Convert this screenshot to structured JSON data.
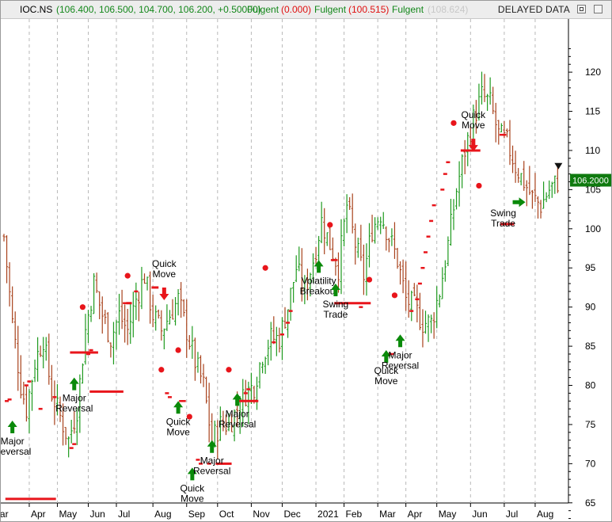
{
  "header": {
    "symbol": "IOC.NS",
    "ohlc": "(106.400, 106.500, 104.700, 106.200, +0.50000)",
    "ind1_name": "Fulgent",
    "ind1_value": "(0.000)",
    "ind2_name": "Fulgent",
    "ind2_value": "(100.515)",
    "ind3_name": "Fulgent",
    "ind3_value": "(108.624)",
    "status": "DELAYED DATA"
  },
  "colors": {
    "up": "#1f9a1f",
    "down": "#a8421c",
    "signal": "#e8151b",
    "arrow": "#0a8a0a",
    "price_box": "#0f7a0f",
    "header_green": "#13871a",
    "header_red": "#e01010",
    "header_gray": "#c8c8c8",
    "grid": "#b9b9b9"
  },
  "chart_data": {
    "type": "candlestick",
    "title": "IOC.NS",
    "ylim": [
      60,
      124
    ],
    "yticks": [
      65,
      70,
      75,
      80,
      85,
      90,
      95,
      100,
      105,
      110,
      115,
      120
    ],
    "x_tick_labels": [
      "ar",
      "Apr",
      "May",
      "Jun",
      "Jul",
      "Aug",
      "Sep",
      "Oct",
      "Nov",
      "Dec",
      "2021",
      "Feb",
      "Mar",
      "Apr",
      "May",
      "Jun",
      "Jul",
      "Aug"
    ],
    "last_price": "106.2000",
    "ohlc": [
      {
        "index": 0,
        "value": 99
      },
      {
        "index": 3,
        "value": 88
      },
      {
        "index": 6,
        "value": 80
      },
      {
        "index": 8,
        "value": 77
      },
      {
        "index": 11,
        "value": 83
      },
      {
        "index": 14,
        "value": 86
      },
      {
        "index": 17,
        "value": 79
      },
      {
        "index": 20,
        "value": 76
      },
      {
        "index": 23,
        "value": 73
      },
      {
        "index": 26,
        "value": 77
      },
      {
        "index": 29,
        "value": 87
      },
      {
        "index": 32,
        "value": 93
      },
      {
        "index": 35,
        "value": 89
      },
      {
        "index": 38,
        "value": 86
      },
      {
        "index": 41,
        "value": 89
      },
      {
        "index": 44,
        "value": 87
      },
      {
        "index": 47,
        "value": 91
      },
      {
        "index": 50,
        "value": 94
      },
      {
        "index": 53,
        "value": 89
      },
      {
        "index": 56,
        "value": 87
      },
      {
        "index": 59,
        "value": 89
      },
      {
        "index": 62,
        "value": 91
      },
      {
        "index": 65,
        "value": 87
      },
      {
        "index": 68,
        "value": 83
      },
      {
        "index": 71,
        "value": 80
      },
      {
        "index": 74,
        "value": 73
      },
      {
        "index": 77,
        "value": 75
      },
      {
        "index": 80,
        "value": 75
      },
      {
        "index": 83,
        "value": 77
      },
      {
        "index": 86,
        "value": 79
      },
      {
        "index": 89,
        "value": 80
      },
      {
        "index": 92,
        "value": 84
      },
      {
        "index": 95,
        "value": 86
      },
      {
        "index": 98,
        "value": 86
      },
      {
        "index": 101,
        "value": 90
      },
      {
        "index": 104,
        "value": 95
      },
      {
        "index": 107,
        "value": 92
      },
      {
        "index": 110,
        "value": 96
      },
      {
        "index": 113,
        "value": 101
      },
      {
        "index": 116,
        "value": 98
      },
      {
        "index": 119,
        "value": 95
      },
      {
        "index": 122,
        "value": 103
      },
      {
        "index": 125,
        "value": 98
      },
      {
        "index": 128,
        "value": 94
      },
      {
        "index": 131,
        "value": 100
      },
      {
        "index": 134,
        "value": 102
      },
      {
        "index": 137,
        "value": 99
      },
      {
        "index": 140,
        "value": 96
      },
      {
        "index": 143,
        "value": 91
      },
      {
        "index": 146,
        "value": 90
      },
      {
        "index": 149,
        "value": 88
      },
      {
        "index": 152,
        "value": 88
      },
      {
        "index": 155,
        "value": 92
      },
      {
        "index": 158,
        "value": 98
      },
      {
        "index": 161,
        "value": 105
      },
      {
        "index": 164,
        "value": 110
      },
      {
        "index": 167,
        "value": 114
      },
      {
        "index": 170,
        "value": 117
      },
      {
        "index": 173,
        "value": 116
      },
      {
        "index": 176,
        "value": 112
      },
      {
        "index": 179,
        "value": 111
      },
      {
        "index": 182,
        "value": 108
      },
      {
        "index": 185,
        "value": 106
      },
      {
        "index": 188,
        "value": 104
      },
      {
        "index": 191,
        "value": 103
      },
      {
        "index": 194,
        "value": 105
      },
      {
        "index": 197,
        "value": 106
      }
    ],
    "signal_dots": [
      {
        "index": 28,
        "value": 90
      },
      {
        "index": 44,
        "value": 94
      },
      {
        "index": 56,
        "value": 82
      },
      {
        "index": 62,
        "value": 84.5
      },
      {
        "index": 66,
        "value": 76
      },
      {
        "index": 80,
        "value": 82
      },
      {
        "index": 93,
        "value": 95
      },
      {
        "index": 116,
        "value": 100.5
      },
      {
        "index": 130,
        "value": 93.5
      },
      {
        "index": 139,
        "value": 91.5
      },
      {
        "index": 160,
        "value": 113.5
      },
      {
        "index": 169,
        "value": 105.5
      }
    ],
    "stop_dashes": [
      {
        "index": 1,
        "value": 78
      },
      {
        "index": 2,
        "value": 78.2
      },
      {
        "index": 8,
        "value": 80
      },
      {
        "index": 9,
        "value": 80.5
      },
      {
        "index": 13,
        "value": 77
      },
      {
        "index": 18,
        "value": 78.5
      },
      {
        "index": 24,
        "value": 72
      },
      {
        "index": 25,
        "value": 72.5
      },
      {
        "index": 30,
        "value": 84
      },
      {
        "index": 31,
        "value": 84.5
      },
      {
        "index": 43,
        "value": 90.5
      },
      {
        "index": 47,
        "value": 92
      },
      {
        "index": 58,
        "value": 79
      },
      {
        "index": 59,
        "value": 78.5
      },
      {
        "index": 63,
        "value": 78
      },
      {
        "index": 64,
        "value": 78
      },
      {
        "index": 69,
        "value": 70.5
      },
      {
        "index": 70,
        "value": 70
      },
      {
        "index": 73,
        "value": 70
      },
      {
        "index": 76,
        "value": 70
      },
      {
        "index": 86,
        "value": 79
      },
      {
        "index": 87,
        "value": 79.5
      },
      {
        "index": 96,
        "value": 85.5
      },
      {
        "index": 99,
        "value": 86.5
      },
      {
        "index": 101,
        "value": 88
      },
      {
        "index": 102,
        "value": 89.5
      },
      {
        "index": 117,
        "value": 96
      },
      {
        "index": 118,
        "value": 96
      },
      {
        "index": 126,
        "value": 90.5
      },
      {
        "index": 127,
        "value": 90
      },
      {
        "index": 137,
        "value": 84
      },
      {
        "index": 138,
        "value": 84
      },
      {
        "index": 145,
        "value": 89.5
      },
      {
        "index": 147,
        "value": 91
      },
      {
        "index": 148,
        "value": 93
      },
      {
        "index": 149,
        "value": 95
      },
      {
        "index": 150,
        "value": 97
      },
      {
        "index": 151,
        "value": 99
      },
      {
        "index": 152,
        "value": 101
      },
      {
        "index": 153,
        "value": 103
      },
      {
        "index": 156,
        "value": 105
      },
      {
        "index": 157,
        "value": 107
      },
      {
        "index": 158,
        "value": 108.5
      },
      {
        "index": 177,
        "value": 112
      },
      {
        "index": 178,
        "value": 112
      }
    ],
    "levels": [
      {
        "x1": 0.5,
        "x2": 18.5,
        "value": 65.5
      },
      {
        "x1": 23.5,
        "x2": 33.5,
        "value": 84.2
      },
      {
        "x1": 30.5,
        "x2": 42.5,
        "value": 79.2
      },
      {
        "x1": 43.5,
        "x2": 45.5,
        "value": 90.5
      },
      {
        "x1": 52.5,
        "x2": 55,
        "value": 92.5
      },
      {
        "x1": 75.5,
        "x2": 81,
        "value": 70
      },
      {
        "x1": 83.5,
        "x2": 90.5,
        "value": 78
      },
      {
        "x1": 117.5,
        "x2": 130.5,
        "value": 90.5
      },
      {
        "x1": 162.5,
        "x2": 169.5,
        "value": 110
      },
      {
        "x1": 176.5,
        "x2": 181.5,
        "value": 100.6
      }
    ],
    "signals": [
      {
        "index": 3,
        "value": 75.5,
        "direction": "up",
        "label": [
          "Major",
          "Reversal"
        ]
      },
      {
        "index": 25,
        "value": 81,
        "direction": "up",
        "label": [
          "Major",
          "Reversal"
        ]
      },
      {
        "index": 57,
        "value": 92.5,
        "direction": "down",
        "label": [
          "Quick",
          "Move"
        ]
      },
      {
        "index": 62,
        "value": 78,
        "direction": "up",
        "label": [
          "Quick",
          "Move"
        ]
      },
      {
        "index": 67,
        "value": 69.5,
        "direction": "up",
        "label": [
          "Quick",
          "Move"
        ]
      },
      {
        "index": 74,
        "value": 73,
        "direction": "up",
        "label": [
          "Major",
          "Reversal"
        ]
      },
      {
        "index": 83,
        "value": 79,
        "direction": "up",
        "label": [
          "Major",
          "Reversal"
        ]
      },
      {
        "index": 112,
        "value": 96,
        "direction": "up",
        "label": [
          "Volatility",
          "Breakout"
        ]
      },
      {
        "index": 118,
        "value": 93,
        "direction": "up",
        "label": [
          "Swing",
          "Trade"
        ]
      },
      {
        "index": 136,
        "value": 84.5,
        "direction": "up",
        "label": [
          "Quick",
          "Move"
        ]
      },
      {
        "index": 141,
        "value": 86.5,
        "direction": "up",
        "label": [
          "Major",
          "Reversal"
        ]
      },
      {
        "index": 167,
        "value": 111.5,
        "direction": "down",
        "label": [
          "Quick",
          "Move"
        ]
      },
      {
        "index": 181,
        "value": 103.4,
        "direction": "right",
        "label": [
          "Swing",
          "Trade"
        ]
      }
    ]
  }
}
